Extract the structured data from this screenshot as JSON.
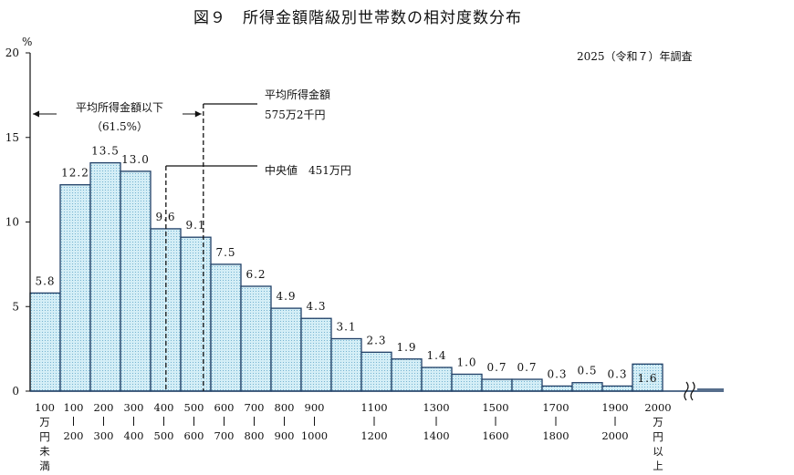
{
  "chart_data": {
    "type": "bar",
    "title": "図９　所得金額階級別世帯数の相対度数分布",
    "survey_note": "2025（令和７）年調査",
    "ylabel": "%",
    "ylim": [
      0,
      20
    ],
    "yticks": [
      "0",
      "5",
      "10",
      "15",
      "20"
    ],
    "values": [
      5.8,
      12.2,
      13.5,
      13.0,
      9.6,
      9.1,
      7.5,
      6.2,
      4.9,
      4.3,
      3.1,
      2.3,
      1.9,
      1.4,
      1.0,
      0.7,
      0.7,
      0.3,
      0.5,
      0.3,
      1.6
    ],
    "value_labels": [
      "5.8",
      "12.2",
      "13.5",
      "13.0",
      "9.6",
      "9.1",
      "7.5",
      "6.2",
      "4.9",
      "4.3",
      "3.1",
      "2.3",
      "1.9",
      "1.4",
      "1.0",
      "0.7",
      "0.7",
      "0.3",
      "0.5",
      "0.3",
      "1.6"
    ],
    "x_boundary_labels": [
      "100",
      "200",
      "300",
      "400",
      "500",
      "600",
      "700",
      "800",
      "900",
      "1100",
      "1200",
      "1400",
      "1500",
      "1700",
      "1800",
      "1900",
      "2000"
    ],
    "x_first_label": "100万円未満",
    "x_last_label": "2000万円以上",
    "bin_edges_man_yen": [
      0,
      100,
      200,
      300,
      400,
      500,
      600,
      700,
      800,
      900,
      1000,
      1100,
      1200,
      1300,
      1400,
      1500,
      1600,
      1700,
      1800,
      1900,
      2000
    ],
    "annotations": {
      "below_average": "平均所得金額以下",
      "below_average_share": "（61.5%）",
      "average_label": "平均所得金額",
      "average_value": "575万2千円",
      "median_label": "中央値　451万円"
    },
    "average_man_yen": 575.2,
    "median_man_yen": 451,
    "grid": false,
    "bar_fill": "#d4eef6",
    "bar_dots": "#5fa6c8",
    "bar_stroke": "#1f3f66"
  }
}
